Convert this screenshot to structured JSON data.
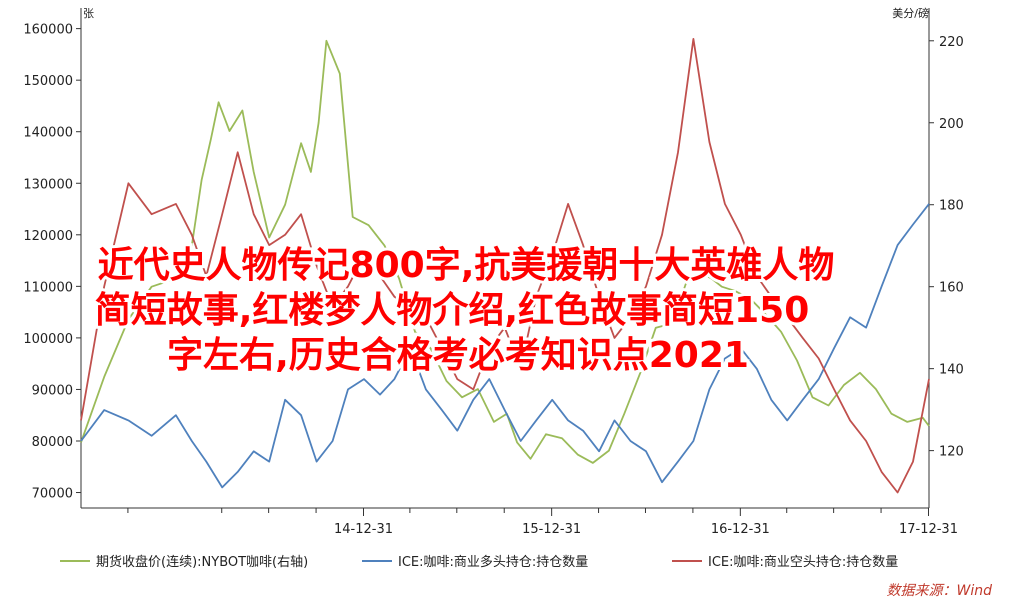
{
  "chart_data": {
    "type": "line",
    "title": "",
    "left_axis": {
      "unit": "张",
      "ylim": [
        67000,
        164000
      ],
      "ticks": [
        70000,
        80000,
        90000,
        100000,
        110000,
        120000,
        130000,
        140000,
        150000,
        160000
      ],
      "tick_labels": [
        "70000",
        "80000",
        "90000",
        "100000",
        "110000",
        "120000",
        "130000",
        "140000",
        "150000",
        "160000"
      ]
    },
    "right_axis": {
      "unit": "美分/磅",
      "ylim": [
        106,
        228
      ],
      "ticks": [
        120,
        140,
        160,
        180,
        200,
        220
      ],
      "tick_labels": [
        "120",
        "140",
        "160",
        "180",
        "200",
        "220"
      ]
    },
    "x_axis": {
      "xlim": [
        "2013-07-01",
        "2018-01-01"
      ],
      "ticks": [
        "2014-12-31",
        "2015-12-31",
        "2016-12-31",
        "2017-12-31"
      ],
      "tick_labels": [
        "14-12-31",
        "15-12-31",
        "16-12-31",
        "17-12-31"
      ]
    },
    "grid": false,
    "legend_position": "bottom",
    "series": [
      {
        "name": "期货收盘价(连续):NYBOT咖啡(右轴)",
        "axis": "right",
        "color": "#9bbb59",
        "x": [
          "2013-07-01",
          "2013-08-15",
          "2013-10-01",
          "2013-11-15",
          "2014-01-01",
          "2014-02-01",
          "2014-02-20",
          "2014-03-10",
          "2014-03-25",
          "2014-04-15",
          "2014-05-10",
          "2014-06-01",
          "2014-07-01",
          "2014-08-01",
          "2014-09-01",
          "2014-09-20",
          "2014-10-05",
          "2014-10-20",
          "2014-11-15",
          "2014-12-10",
          "2015-01-10",
          "2015-02-10",
          "2015-03-10",
          "2015-04-10",
          "2015-05-10",
          "2015-06-10",
          "2015-07-10",
          "2015-08-10",
          "2015-09-10",
          "2015-10-05",
          "2015-10-25",
          "2015-11-20",
          "2015-12-20",
          "2016-01-20",
          "2016-02-20",
          "2016-03-20",
          "2016-04-20",
          "2016-05-20",
          "2016-06-20",
          "2016-07-20",
          "2016-08-20",
          "2016-09-20",
          "2016-10-20",
          "2016-11-05",
          "2016-11-25",
          "2016-12-20",
          "2017-01-20",
          "2017-02-20",
          "2017-03-20",
          "2017-04-20",
          "2017-05-20",
          "2017-06-20",
          "2017-07-20",
          "2017-08-20",
          "2017-09-20",
          "2017-10-20",
          "2017-11-20",
          "2017-12-20",
          "2018-01-01"
        ],
        "values": [
          122,
          138,
          152,
          160,
          162,
          170,
          186,
          196,
          205,
          198,
          203,
          188,
          172,
          180,
          195,
          188,
          200,
          220,
          212,
          177,
          175,
          170,
          162,
          149,
          145,
          137,
          133,
          135,
          127,
          129,
          122,
          118,
          124,
          123,
          119,
          117,
          120,
          129,
          139,
          150,
          151,
          162,
          163,
          162,
          160,
          159,
          157,
          153,
          149,
          142,
          133,
          131,
          136,
          139,
          135,
          129,
          127,
          128,
          126
        ]
      },
      {
        "name": "ICE:咖啡:商业多头持仓:持仓数量",
        "axis": "left",
        "color": "#4f81bd",
        "x": [
          "2013-07-01",
          "2013-08-15",
          "2013-10-01",
          "2013-11-15",
          "2014-01-01",
          "2014-02-01",
          "2014-03-01",
          "2014-04-01",
          "2014-05-01",
          "2014-06-01",
          "2014-07-01",
          "2014-08-01",
          "2014-09-01",
          "2014-10-01",
          "2014-11-01",
          "2014-12-01",
          "2015-01-01",
          "2015-02-01",
          "2015-03-01",
          "2015-04-01",
          "2015-05-01",
          "2015-06-01",
          "2015-07-01",
          "2015-08-01",
          "2015-09-01",
          "2015-10-01",
          "2015-11-01",
          "2015-12-01",
          "2016-01-01",
          "2016-02-01",
          "2016-03-01",
          "2016-04-01",
          "2016-05-01",
          "2016-06-01",
          "2016-07-01",
          "2016-08-01",
          "2016-09-01",
          "2016-10-01",
          "2016-11-01",
          "2016-12-01",
          "2017-01-01",
          "2017-02-01",
          "2017-03-01",
          "2017-04-01",
          "2017-05-01",
          "2017-06-01",
          "2017-07-01",
          "2017-08-01",
          "2017-09-01",
          "2017-10-01",
          "2017-11-01",
          "2017-12-01",
          "2018-01-01"
        ],
        "values": [
          80000,
          86000,
          84000,
          81000,
          85000,
          80000,
          76000,
          71000,
          74000,
          78000,
          76000,
          88000,
          85000,
          76000,
          80000,
          90000,
          92000,
          89000,
          92000,
          98000,
          90000,
          86000,
          82000,
          88000,
          92000,
          86000,
          80000,
          84000,
          88000,
          84000,
          82000,
          78000,
          84000,
          80000,
          78000,
          72000,
          76000,
          80000,
          90000,
          96000,
          98000,
          94000,
          88000,
          84000,
          88000,
          92000,
          98000,
          104000,
          102000,
          110000,
          118000,
          122000,
          126000
        ]
      },
      {
        "name": "ICE:咖啡:商业空头持仓:持仓数量",
        "axis": "left",
        "color": "#c0504d",
        "x": [
          "2013-07-01",
          "2013-08-15",
          "2013-10-01",
          "2013-11-15",
          "2014-01-01",
          "2014-02-01",
          "2014-03-01",
          "2014-04-01",
          "2014-05-01",
          "2014-06-01",
          "2014-07-01",
          "2014-08-01",
          "2014-09-01",
          "2014-10-01",
          "2014-11-01",
          "2014-12-01",
          "2015-01-01",
          "2015-02-01",
          "2015-03-01",
          "2015-04-01",
          "2015-05-01",
          "2015-06-01",
          "2015-07-01",
          "2015-08-01",
          "2015-09-01",
          "2015-10-01",
          "2015-11-01",
          "2015-12-01",
          "2016-01-01",
          "2016-02-01",
          "2016-03-01",
          "2016-04-01",
          "2016-05-01",
          "2016-06-01",
          "2016-07-01",
          "2016-08-01",
          "2016-09-01",
          "2016-10-01",
          "2016-11-01",
          "2016-12-01",
          "2017-01-01",
          "2017-02-01",
          "2017-03-01",
          "2017-04-01",
          "2017-05-01",
          "2017-06-01",
          "2017-07-01",
          "2017-08-01",
          "2017-09-01",
          "2017-10-01",
          "2017-11-01",
          "2017-12-01",
          "2018-01-01"
        ],
        "values": [
          84000,
          110000,
          130000,
          124000,
          126000,
          120000,
          112000,
          124000,
          136000,
          124000,
          118000,
          120000,
          124000,
          114000,
          106000,
          110000,
          116000,
          112000,
          108000,
          106000,
          104000,
          98000,
          92000,
          90000,
          98000,
          102000,
          94000,
          108000,
          116000,
          126000,
          118000,
          108000,
          100000,
          104000,
          110000,
          120000,
          136000,
          158000,
          138000,
          126000,
          120000,
          112000,
          108000,
          104000,
          100000,
          96000,
          90000,
          84000,
          80000,
          74000,
          70000,
          76000,
          92000
        ]
      }
    ],
    "source": "数据来源：Wind"
  },
  "overlay_title": {
    "lines": [
      "近代史人物传记800字,抗美援朝十大英雄人物",
      "简短故事,红楼梦人物介绍,红色故事简短150",
      "字左右,历史合格考必考知识点2021"
    ]
  }
}
